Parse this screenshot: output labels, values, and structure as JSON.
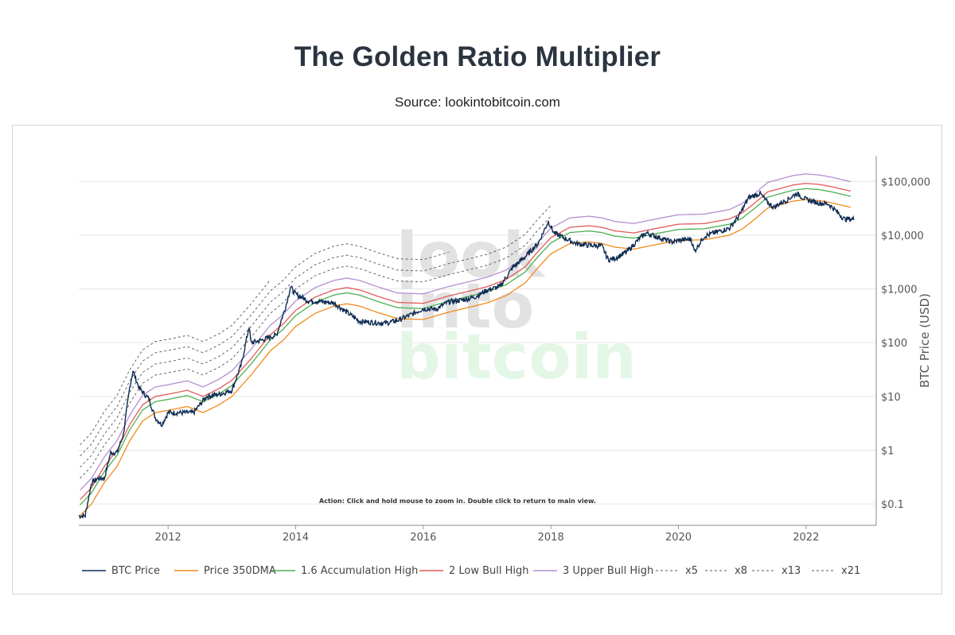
{
  "page": {
    "title": "The Golden Ratio Multiplier",
    "subtitle": "Source: lookintobitcoin.com"
  },
  "chart_data": {
    "type": "line",
    "title": "The Golden Ratio Multiplier",
    "ylabel": "BTC Price (USD)",
    "yscale": "log",
    "ylim": [
      0.04,
      300000
    ],
    "xlim": [
      2010.6,
      2023.1
    ],
    "x_ticks": [
      2012,
      2014,
      2016,
      2018,
      2020,
      2022
    ],
    "x_tick_labels": [
      "2012",
      "2014",
      "2016",
      "2018",
      "2020",
      "2022"
    ],
    "y_ticks": [
      0.1,
      1,
      10,
      100,
      1000,
      10000,
      100000
    ],
    "y_tick_labels": [
      "$0.1",
      "$1",
      "$10",
      "$100",
      "$1,000",
      "$10,000",
      "$100,000"
    ],
    "grid": true,
    "legend_position": "bottom",
    "watermark": [
      "look",
      "into",
      "bitcoin"
    ],
    "annotation": "Action: Click and hold mouse to zoom in.  Double click to return to main view.",
    "colors": {
      "btc": "#0d2a52",
      "dma": "#f28a1c",
      "accum": "#4caf50",
      "lowbull": "#e05a5a",
      "upperbull": "#b68fd0",
      "dashed": "#555555",
      "grid": "#e6e6e6",
      "watermark_gray": "#e2e2e2",
      "watermark_green": "#e4f7e7"
    },
    "btc_price": {
      "x": [
        2010.6,
        2010.7,
        2010.8,
        2010.9,
        2011.0,
        2011.1,
        2011.2,
        2011.3,
        2011.4,
        2011.45,
        2011.55,
        2011.7,
        2011.8,
        2011.9,
        2012.0,
        2012.2,
        2012.4,
        2012.6,
        2012.8,
        2013.0,
        2013.15,
        2013.27,
        2013.3,
        2013.45,
        2013.7,
        2013.85,
        2013.92,
        2014.0,
        2014.2,
        2014.4,
        2014.6,
        2014.8,
        2015.0,
        2015.2,
        2015.4,
        2015.6,
        2015.8,
        2016.0,
        2016.2,
        2016.4,
        2016.6,
        2016.8,
        2017.0,
        2017.2,
        2017.4,
        2017.6,
        2017.8,
        2017.96,
        2018.05,
        2018.2,
        2018.4,
        2018.6,
        2018.8,
        2018.9,
        2019.0,
        2019.2,
        2019.4,
        2019.5,
        2019.7,
        2019.9,
        2020.0,
        2020.2,
        2020.25,
        2020.4,
        2020.6,
        2020.8,
        2020.95,
        2021.1,
        2021.28,
        2021.4,
        2021.5,
        2021.6,
        2021.7,
        2021.85,
        2022.0,
        2022.2,
        2022.35,
        2022.45,
        2022.6,
        2022.75
      ],
      "y": [
        0.06,
        0.06,
        0.25,
        0.3,
        0.3,
        0.9,
        0.9,
        2.0,
        15.0,
        30.0,
        14.0,
        9.0,
        4.0,
        3.0,
        5.0,
        5.0,
        5.0,
        10.0,
        11.0,
        13.0,
        40.0,
        200.0,
        100.0,
        110.0,
        140.0,
        500.0,
        1100.0,
        800.0,
        600.0,
        580.0,
        550.0,
        370.0,
        250.0,
        240.0,
        230.0,
        260.0,
        330.0,
        430.0,
        420.0,
        580.0,
        620.0,
        700.0,
        950.0,
        1100.0,
        2500.0,
        4000.0,
        7000.0,
        18000.0,
        11000.0,
        9000.0,
        7000.0,
        6500.0,
        6300.0,
        3500.0,
        3700.0,
        5000.0,
        9000.0,
        11000.0,
        9000.0,
        7500.0,
        8000.0,
        8500.0,
        5000.0,
        9500.0,
        11500.0,
        13500.0,
        23000.0,
        50000.0,
        60000.0,
        40000.0,
        33000.0,
        40000.0,
        45000.0,
        60000.0,
        46000.0,
        40000.0,
        38000.0,
        30000.0,
        20000.0,
        20000.0
      ]
    },
    "dma_350": {
      "x": [
        2010.62,
        2010.8,
        2011.0,
        2011.2,
        2011.4,
        2011.6,
        2011.8,
        2012.0,
        2012.3,
        2012.55,
        2012.8,
        2013.0,
        2013.3,
        2013.6,
        2013.8,
        2014.0,
        2014.3,
        2014.6,
        2014.8,
        2015.0,
        2015.3,
        2015.6,
        2016.0,
        2016.4,
        2016.8,
        2017.0,
        2017.3,
        2017.6,
        2017.8,
        2018.0,
        2018.3,
        2018.6,
        2018.8,
        2019.0,
        2019.3,
        2019.6,
        2020.0,
        2020.4,
        2020.8,
        2021.0,
        2021.2,
        2021.4,
        2021.6,
        2021.8,
        2022.0,
        2022.2,
        2022.4,
        2022.7
      ],
      "y": [
        0.06,
        0.1,
        0.25,
        0.5,
        1.5,
        3.5,
        5.0,
        5.5,
        6.5,
        5.0,
        7.0,
        10.0,
        25.0,
        70.0,
        110.0,
        200.0,
        350.0,
        480.0,
        530.0,
        480.0,
        360.0,
        280.0,
        270.0,
        370.0,
        480.0,
        550.0,
        750.0,
        1300.0,
        2500.0,
        4500.0,
        7000.0,
        7500.0,
        7000.0,
        6000.0,
        5500.0,
        6500.0,
        8000.0,
        8200.0,
        10000.0,
        13000.0,
        20000.0,
        32000.0,
        37000.0,
        43000.0,
        46000.0,
        44000.0,
        40000.0,
        33000.0
      ]
    },
    "series": [
      {
        "name": "BTC Price",
        "kind": "btc",
        "color": "#0d2a52",
        "dash": false
      },
      {
        "name": "Price 350DMA",
        "kind": "dma",
        "multiplier": 1,
        "color": "#f28a1c",
        "dash": false
      },
      {
        "name": "1.6 Accumulation High",
        "kind": "multiple",
        "multiplier": 1.6,
        "color": "#4caf50",
        "dash": false
      },
      {
        "name": "2 Low Bull High",
        "kind": "multiple",
        "multiplier": 2,
        "color": "#e05a5a",
        "dash": false
      },
      {
        "name": "3 Upper Bull High",
        "kind": "multiple",
        "multiplier": 3,
        "color": "#b68fd0",
        "dash": false
      },
      {
        "name": "x5",
        "kind": "multiple",
        "multiplier": 5,
        "x_end": 2018.0,
        "color": "#555555",
        "dash": true
      },
      {
        "name": "x8",
        "kind": "multiple",
        "multiplier": 8,
        "x_end": 2018.0,
        "color": "#555555",
        "dash": true
      },
      {
        "name": "x13",
        "kind": "multiple",
        "multiplier": 13,
        "x_end": 2016.4,
        "color": "#555555",
        "dash": true
      },
      {
        "name": "x21",
        "kind": "multiple",
        "multiplier": 21,
        "x_end": 2013.6,
        "color": "#555555",
        "dash": true
      }
    ]
  }
}
